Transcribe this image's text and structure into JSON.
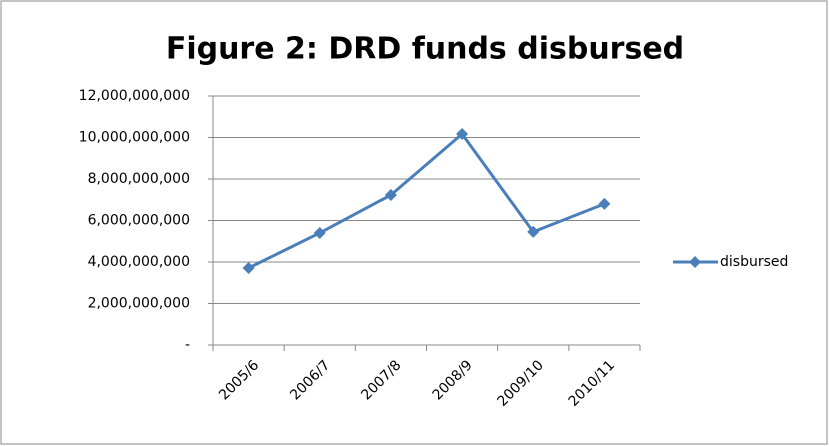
{
  "chart_data": {
    "type": "line",
    "title": "Figure 2: DRD funds disbursed",
    "categories": [
      "2005/6",
      "2006/7",
      "2007/8",
      "2008/9",
      "2009/10",
      "2010/11"
    ],
    "series": [
      {
        "name": "disbursed",
        "color": "#4a7ebb",
        "values": [
          3710000000,
          5400000000,
          7230000000,
          10170000000,
          5450000000,
          6800000000
        ]
      }
    ],
    "ylim": [
      0,
      12000000000
    ],
    "yticks": [
      {
        "value": 0,
        "label": "-"
      },
      {
        "value": 2000000000,
        "label": "2,000,000,000"
      },
      {
        "value": 4000000000,
        "label": "4,000,000,000"
      },
      {
        "value": 6000000000,
        "label": "6,000,000,000"
      },
      {
        "value": 8000000000,
        "label": "8,000,000,000"
      },
      {
        "value": 10000000000,
        "label": "10,000,000,000"
      },
      {
        "value": 12000000000,
        "label": "12,000,000,000"
      }
    ],
    "grid": true,
    "legend": "right"
  }
}
